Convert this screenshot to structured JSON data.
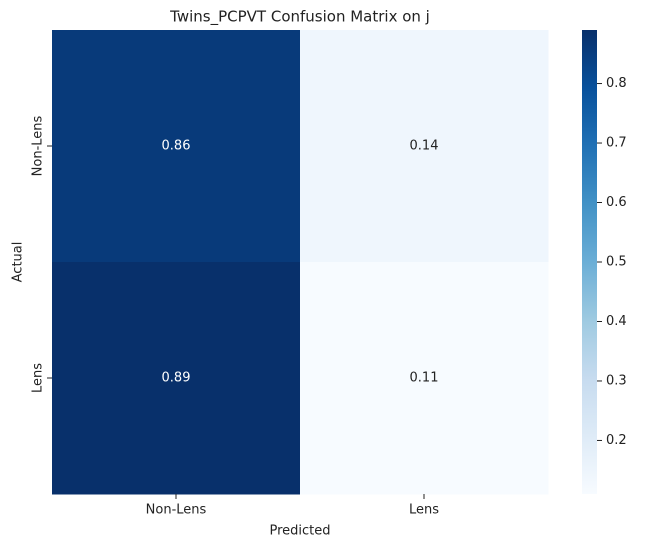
{
  "chart_data": {
    "type": "heatmap",
    "title": "Twins_PCPVT Confusion Matrix on j",
    "x_label": "Predicted",
    "y_label": "Actual",
    "x_categories": [
      "Non-Lens",
      "Lens"
    ],
    "y_categories": [
      "Non-Lens",
      "Lens"
    ],
    "values": [
      [
        0.86,
        0.14
      ],
      [
        0.89,
        0.11
      ]
    ],
    "colormap": [
      "#f7fbff",
      "#deebf7",
      "#c6dbef",
      "#9ecae1",
      "#6baed6",
      "#4292c6",
      "#2171b5",
      "#08519c",
      "#08306b"
    ],
    "clim": [
      0.11,
      0.89
    ],
    "cticks": [
      0.2,
      0.3,
      0.4,
      0.5,
      0.6,
      0.7,
      0.8
    ]
  }
}
